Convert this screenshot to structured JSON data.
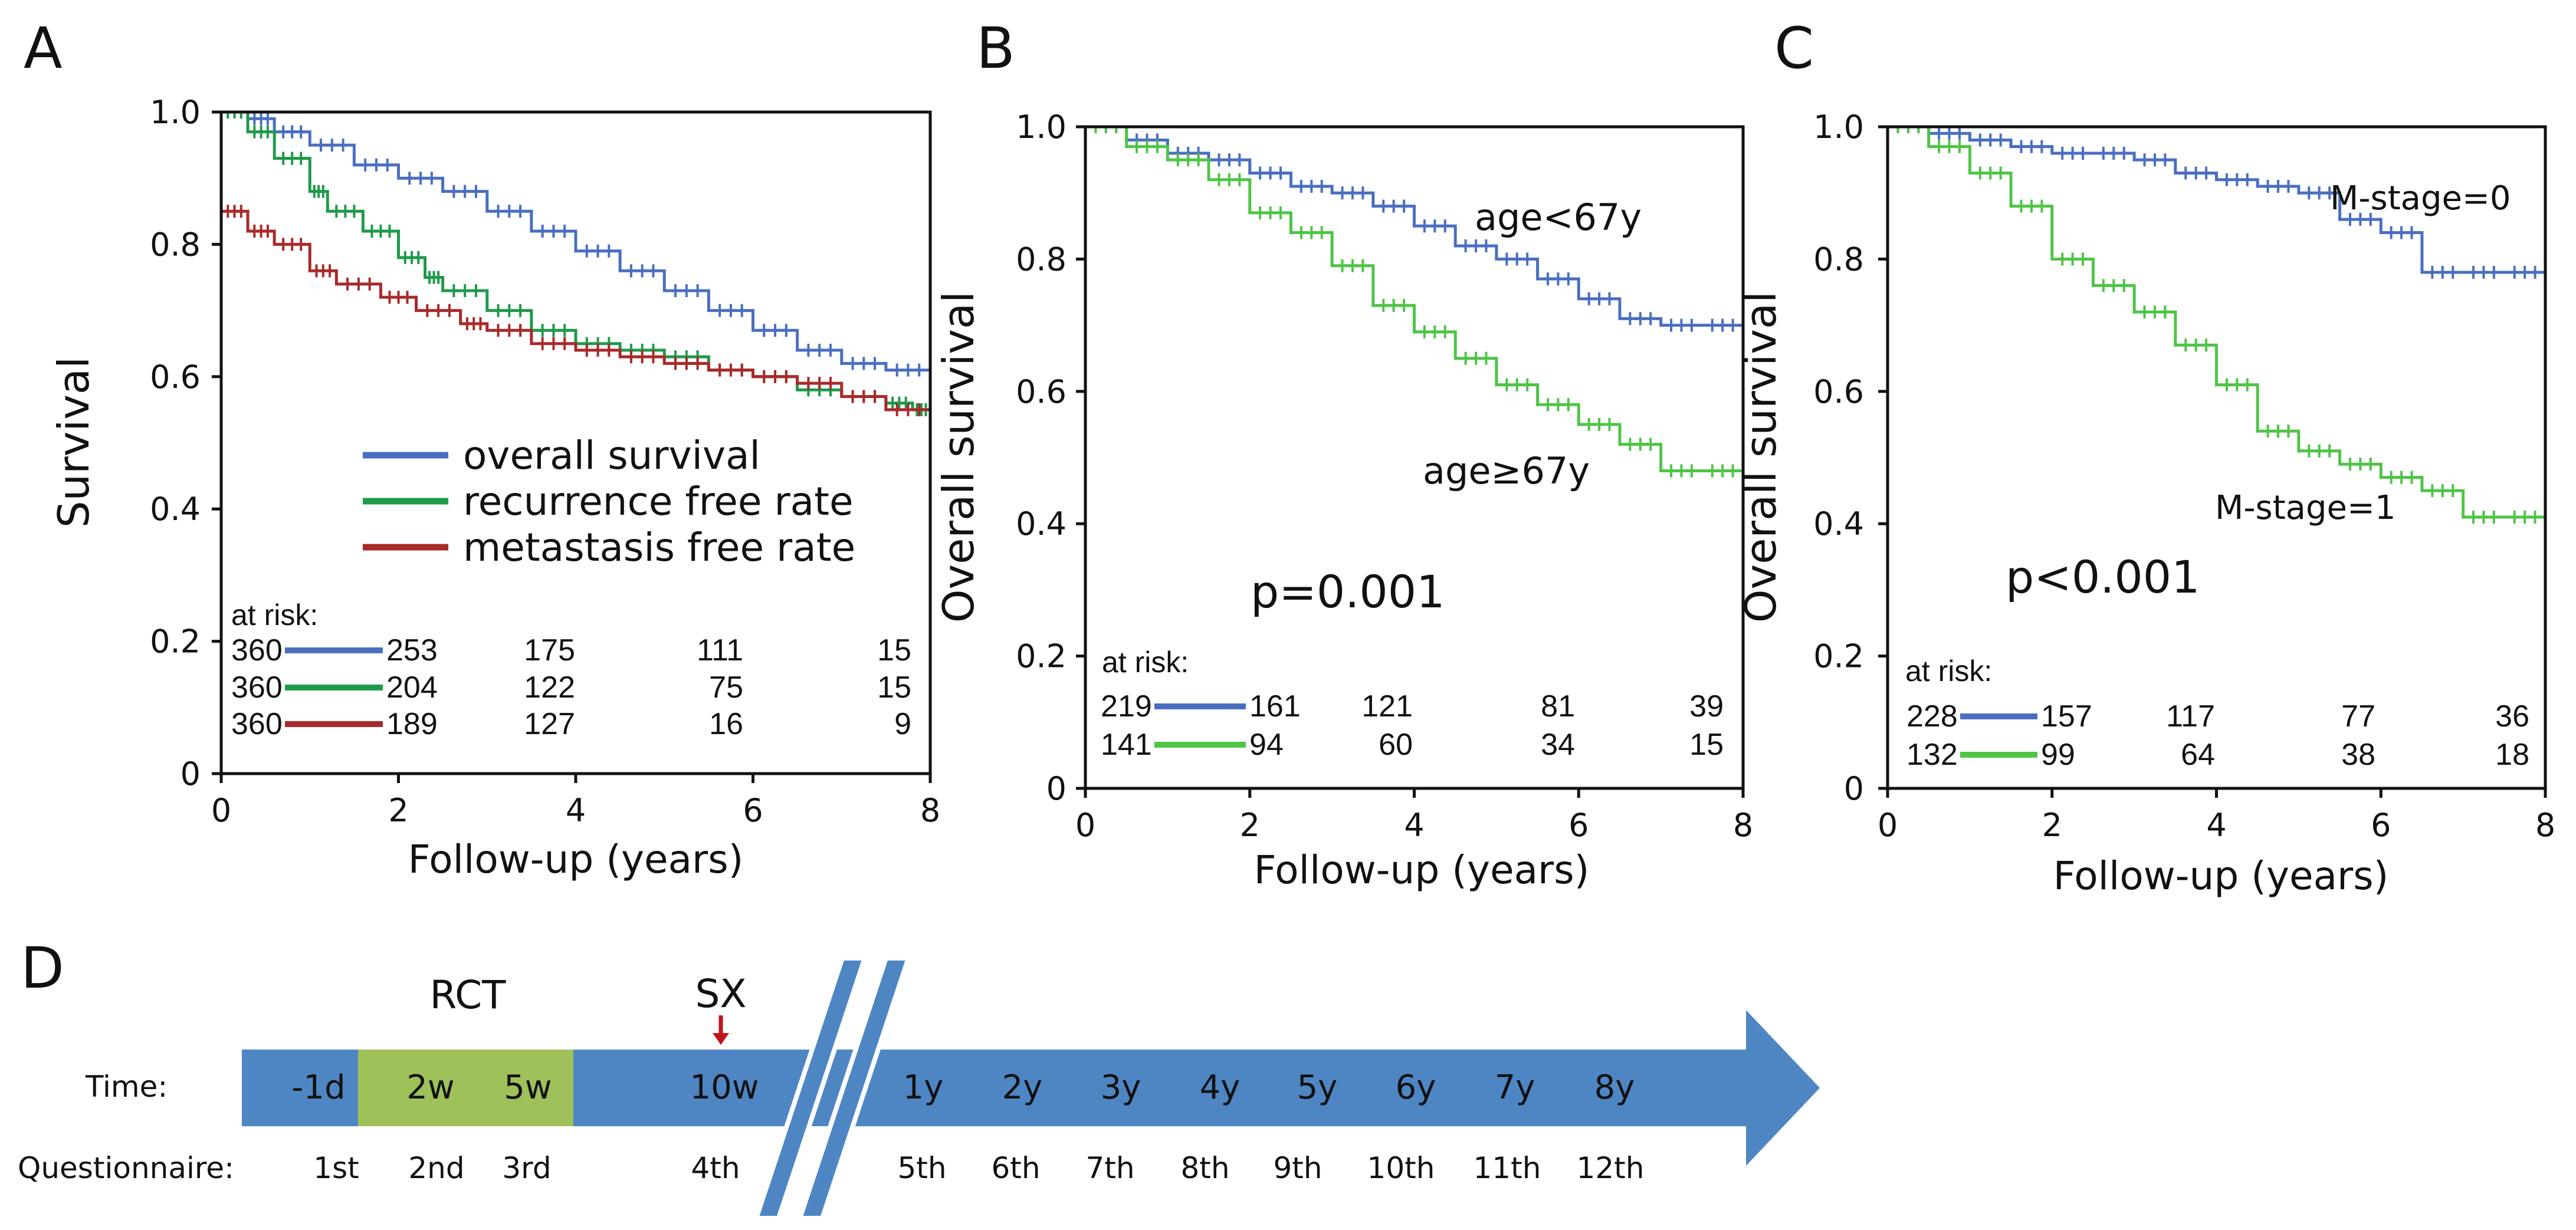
{
  "colors": {
    "blue": "#4a6fc0",
    "green": "#1f9a4a",
    "red": "#a92a2a",
    "lightgreen": "#4fc447",
    "arrow": "#4e86c4",
    "rct_box": "#9fc15a",
    "rct_text": "#9dbb57",
    "sx": "#c0161b",
    "rct_text_dark": "#6a6a1e"
  },
  "chart_data": [
    {
      "type": "line",
      "panel": "A",
      "xlabel": "Follow-up (years)",
      "ylabel": "Survival",
      "xlim": [
        0,
        8
      ],
      "ylim": [
        0,
        1
      ],
      "xticks": [
        "0",
        "2",
        "4",
        "6",
        "8"
      ],
      "yticks": [
        "0",
        "0.2",
        "0.4",
        "0.6",
        "0.8",
        "1.0"
      ],
      "series": [
        {
          "name": "overall survival",
          "color_key": "blue",
          "x": [
            0,
            0.3,
            0.6,
            1,
            1.5,
            2,
            2.5,
            3,
            3.5,
            4,
            4.5,
            5,
            5.5,
            6,
            6.5,
            7,
            7.5,
            8
          ],
          "y": [
            1.0,
            0.99,
            0.97,
            0.95,
            0.92,
            0.9,
            0.88,
            0.85,
            0.82,
            0.79,
            0.76,
            0.73,
            0.7,
            0.67,
            0.64,
            0.62,
            0.61,
            0.61
          ]
        },
        {
          "name": "recurrence free rate",
          "color_key": "green",
          "x": [
            0,
            0.3,
            0.6,
            1,
            1.2,
            1.6,
            2,
            2.3,
            2.5,
            3,
            3.5,
            4,
            4.5,
            5,
            5.5,
            6,
            6.5,
            7,
            7.5,
            7.8,
            8
          ],
          "y": [
            1.0,
            0.97,
            0.93,
            0.88,
            0.85,
            0.82,
            0.78,
            0.75,
            0.73,
            0.7,
            0.67,
            0.65,
            0.64,
            0.63,
            0.61,
            0.6,
            0.58,
            0.57,
            0.56,
            0.55,
            0.51
          ]
        },
        {
          "name": "metastasis free rate",
          "color_key": "red",
          "x": [
            0,
            0.3,
            0.6,
            1,
            1.3,
            1.8,
            2.2,
            2.7,
            3,
            3.5,
            4,
            4.5,
            5,
            5.5,
            6,
            6.5,
            7,
            7.5,
            8
          ],
          "y": [
            0.85,
            0.82,
            0.8,
            0.76,
            0.74,
            0.72,
            0.7,
            0.68,
            0.67,
            0.65,
            0.64,
            0.63,
            0.62,
            0.61,
            0.6,
            0.59,
            0.57,
            0.55,
            0.53
          ]
        }
      ],
      "at_risk_label": "at risk:",
      "at_risk": [
        {
          "color_key": "blue",
          "values": [
            "360",
            "253",
            "175",
            "111",
            "15"
          ]
        },
        {
          "color_key": "green",
          "values": [
            "360",
            "204",
            "122",
            "75",
            "15"
          ]
        },
        {
          "color_key": "red",
          "values": [
            "360",
            "189",
            "127",
            "16",
            "9"
          ]
        }
      ]
    },
    {
      "type": "line",
      "panel": "B",
      "xlabel": "Follow-up (years)",
      "ylabel": "Overall survival",
      "xlim": [
        0,
        8
      ],
      "ylim": [
        0,
        1
      ],
      "xticks": [
        "0",
        "2",
        "4",
        "6",
        "8"
      ],
      "yticks": [
        "0",
        "0.2",
        "0.4",
        "0.6",
        "0.8",
        "1.0"
      ],
      "pvalue": "p=0.001",
      "series": [
        {
          "name": "age<67y",
          "color_key": "blue",
          "x": [
            0,
            0.5,
            1,
            1.5,
            2,
            2.5,
            3,
            3.5,
            4,
            4.5,
            5,
            5.5,
            6,
            6.5,
            7,
            7.5,
            8
          ],
          "y": [
            1.0,
            0.98,
            0.96,
            0.95,
            0.93,
            0.91,
            0.9,
            0.88,
            0.85,
            0.82,
            0.8,
            0.77,
            0.74,
            0.71,
            0.7,
            0.7,
            0.68
          ]
        },
        {
          "name": "age≥67y",
          "color_key": "lightgreen",
          "x": [
            0,
            0.5,
            1,
            1.5,
            2,
            2.5,
            3,
            3.5,
            4,
            4.5,
            5,
            5.5,
            6,
            6.5,
            7,
            7.5,
            8
          ],
          "y": [
            1.0,
            0.97,
            0.95,
            0.92,
            0.87,
            0.84,
            0.79,
            0.73,
            0.69,
            0.65,
            0.61,
            0.58,
            0.55,
            0.52,
            0.48,
            0.48,
            0.48
          ]
        }
      ],
      "at_risk_label": "at risk:",
      "at_risk": [
        {
          "color_key": "blue",
          "values": [
            "219",
            "161",
            "121",
            "81",
            "39"
          ]
        },
        {
          "color_key": "lightgreen",
          "values": [
            "141",
            "94",
            "60",
            "34",
            "15"
          ]
        }
      ]
    },
    {
      "type": "line",
      "panel": "C",
      "xlabel": "Follow-up (years)",
      "ylabel": "Overall survival",
      "xlim": [
        0,
        8
      ],
      "ylim": [
        0,
        1
      ],
      "xticks": [
        "0",
        "2",
        "4",
        "6",
        "8"
      ],
      "yticks": [
        "0",
        "0.2",
        "0.4",
        "0.6",
        "0.8",
        "1.0"
      ],
      "pvalue": "p<0.001",
      "series": [
        {
          "name": "M-stage=0",
          "color_key": "blue",
          "x": [
            0,
            0.5,
            1,
            1.5,
            2,
            2.5,
            3,
            3.5,
            4,
            4.5,
            5,
            5.5,
            6,
            6.5,
            7,
            7.5,
            8
          ],
          "y": [
            1.0,
            0.99,
            0.98,
            0.97,
            0.96,
            0.96,
            0.95,
            0.93,
            0.92,
            0.91,
            0.9,
            0.86,
            0.84,
            0.78,
            0.78,
            0.78,
            0.76
          ]
        },
        {
          "name": "M-stage=1",
          "color_key": "lightgreen",
          "x": [
            0,
            0.5,
            1,
            1.5,
            2,
            2.5,
            3,
            3.5,
            4,
            4.5,
            5,
            5.5,
            6,
            6.5,
            7,
            7.5,
            8
          ],
          "y": [
            1.0,
            0.97,
            0.93,
            0.88,
            0.8,
            0.76,
            0.72,
            0.67,
            0.61,
            0.54,
            0.51,
            0.49,
            0.47,
            0.45,
            0.41,
            0.41,
            0.41
          ]
        }
      ],
      "at_risk_label": "at risk:",
      "at_risk": [
        {
          "color_key": "blue",
          "values": [
            "228",
            "157",
            "117",
            "77",
            "36"
          ]
        },
        {
          "color_key": "lightgreen",
          "values": [
            "132",
            "99",
            "64",
            "38",
            "18"
          ]
        }
      ]
    }
  ],
  "timeline": {
    "panel": "D",
    "rct_label": "RCT",
    "sx_label": "SX",
    "time_label": "Time:",
    "questionnaire_label": "Questionnaire:",
    "time_points": [
      "-1d",
      "2w",
      "5w",
      "10w",
      "1y",
      "2y",
      "3y",
      "4y",
      "5y",
      "6y",
      "7y",
      "8y"
    ],
    "questionnaires": [
      "1st",
      "2nd",
      "3rd",
      "4th",
      "5th",
      "6th",
      "7th",
      "8th",
      "9th",
      "10th",
      "11th",
      "12th"
    ]
  }
}
